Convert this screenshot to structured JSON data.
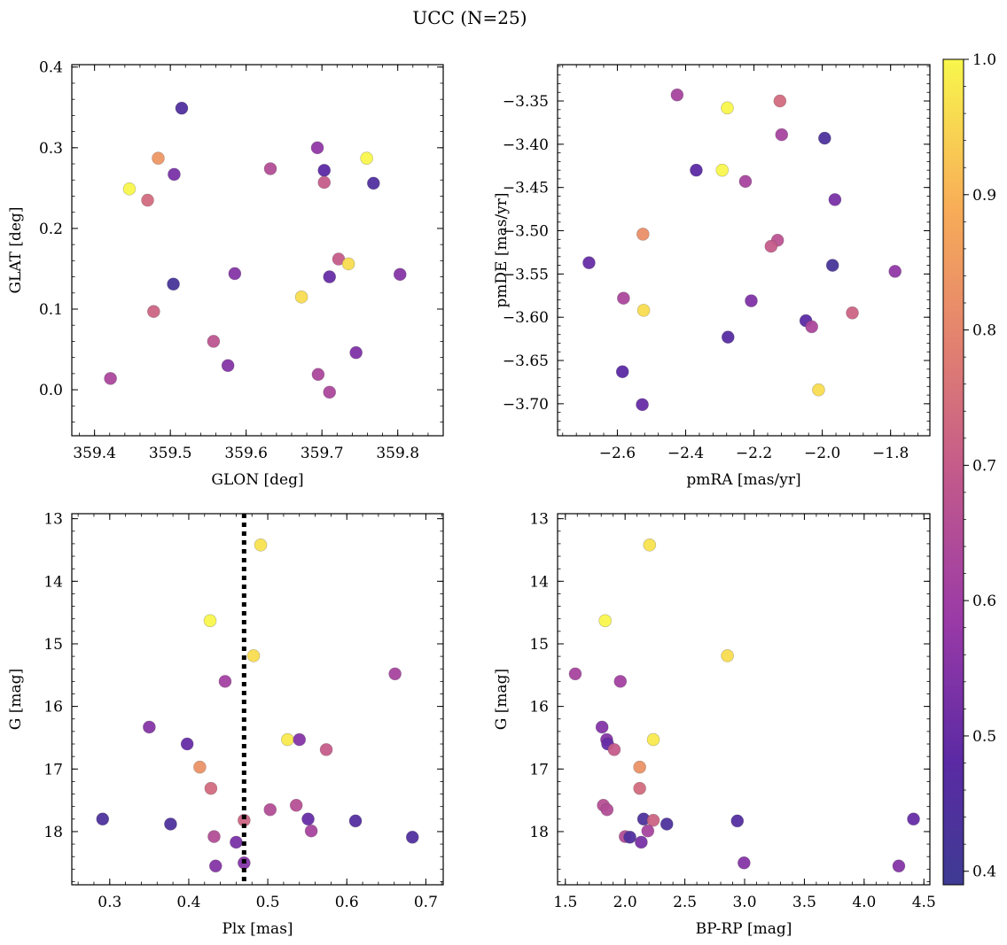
{
  "figure": {
    "title": "UCC (N=25)"
  },
  "colorbar": {
    "min": 0.39,
    "max": 1.0,
    "ticks": [
      0.4,
      0.5,
      0.6,
      0.7,
      0.8,
      0.9,
      1.0
    ],
    "tick_labels": [
      "0.4",
      "0.5",
      "0.6",
      "0.7",
      "0.8",
      "0.9",
      "1.0"
    ],
    "colormap": "plasma"
  },
  "chart_data": [
    {
      "id": "glon-glat",
      "type": "scatter",
      "xlabel": "GLON [deg]",
      "ylabel": "GLAT [deg]",
      "xlim": [
        359.37,
        359.86
      ],
      "ylim": [
        -0.057,
        0.403
      ],
      "xticks": [
        359.4,
        359.5,
        359.6,
        359.7,
        359.8
      ],
      "xtick_labels": [
        "359.4",
        "359.5",
        "359.6",
        "359.7",
        "359.8"
      ],
      "yticks": [
        0.0,
        0.1,
        0.2,
        0.3,
        0.4
      ],
      "ytick_labels": [
        "0.0",
        "0.1",
        "0.2",
        "0.3",
        "0.4"
      ],
      "y_inverted": false,
      "points": [
        {
          "x": 359.515,
          "y": 0.349,
          "c": 0.45
        },
        {
          "x": 359.694,
          "y": 0.3,
          "c": 0.57
        },
        {
          "x": 359.484,
          "y": 0.287,
          "c": 0.84
        },
        {
          "x": 359.759,
          "y": 0.287,
          "c": 1.0
        },
        {
          "x": 359.632,
          "y": 0.274,
          "c": 0.65
        },
        {
          "x": 359.703,
          "y": 0.272,
          "c": 0.48
        },
        {
          "x": 359.505,
          "y": 0.267,
          "c": 0.53
        },
        {
          "x": 359.703,
          "y": 0.257,
          "c": 0.7
        },
        {
          "x": 359.768,
          "y": 0.256,
          "c": 0.45
        },
        {
          "x": 359.446,
          "y": 0.249,
          "c": 1.0
        },
        {
          "x": 359.47,
          "y": 0.235,
          "c": 0.74
        },
        {
          "x": 359.722,
          "y": 0.162,
          "c": 0.7
        },
        {
          "x": 359.735,
          "y": 0.156,
          "c": 0.96
        },
        {
          "x": 359.803,
          "y": 0.143,
          "c": 0.55
        },
        {
          "x": 359.585,
          "y": 0.144,
          "c": 0.55
        },
        {
          "x": 359.71,
          "y": 0.14,
          "c": 0.5
        },
        {
          "x": 359.504,
          "y": 0.131,
          "c": 0.42
        },
        {
          "x": 359.673,
          "y": 0.115,
          "c": 0.96
        },
        {
          "x": 359.478,
          "y": 0.097,
          "c": 0.72
        },
        {
          "x": 359.557,
          "y": 0.06,
          "c": 0.68
        },
        {
          "x": 359.745,
          "y": 0.046,
          "c": 0.54
        },
        {
          "x": 359.576,
          "y": 0.03,
          "c": 0.55
        },
        {
          "x": 359.695,
          "y": 0.019,
          "c": 0.63
        },
        {
          "x": 359.421,
          "y": 0.014,
          "c": 0.63
        },
        {
          "x": 359.71,
          "y": -0.003,
          "c": 0.63
        }
      ]
    },
    {
      "id": "pmra-pmde",
      "type": "scatter",
      "xlabel": "pmRA [mas/yr]",
      "ylabel": "pmDE [mas/yr]",
      "xlim": [
        -2.775,
        -1.685
      ],
      "ylim": [
        -3.737,
        -3.308
      ],
      "xticks": [
        -2.6,
        -2.4,
        -2.2,
        -2.0,
        -1.8
      ],
      "xtick_labels": [
        "−2.6",
        "−2.4",
        "−2.2",
        "−2.0",
        "−1.8"
      ],
      "yticks": [
        -3.7,
        -3.65,
        -3.6,
        -3.55,
        -3.5,
        -3.45,
        -3.4,
        -3.35
      ],
      "ytick_labels": [
        "−3.70",
        "−3.65",
        "−3.60",
        "−3.55",
        "−3.50",
        "−3.45",
        "−3.40",
        "−3.35"
      ],
      "y_inverted": false,
      "points": [
        {
          "x": -2.425,
          "y": -3.343,
          "c": 0.62
        },
        {
          "x": -2.278,
          "y": -3.358,
          "c": 1.0
        },
        {
          "x": -2.124,
          "y": -3.35,
          "c": 0.74
        },
        {
          "x": -2.119,
          "y": -3.389,
          "c": 0.62
        },
        {
          "x": -1.993,
          "y": -3.393,
          "c": 0.44
        },
        {
          "x": -2.369,
          "y": -3.43,
          "c": 0.48
        },
        {
          "x": -2.293,
          "y": -3.43,
          "c": 1.0
        },
        {
          "x": -2.225,
          "y": -3.443,
          "c": 0.62
        },
        {
          "x": -1.963,
          "y": -3.464,
          "c": 0.53
        },
        {
          "x": -2.525,
          "y": -3.504,
          "c": 0.82
        },
        {
          "x": -2.131,
          "y": -3.511,
          "c": 0.67
        },
        {
          "x": -2.15,
          "y": -3.518,
          "c": 0.7
        },
        {
          "x": -2.683,
          "y": -3.537,
          "c": 0.5
        },
        {
          "x": -1.97,
          "y": -3.54,
          "c": 0.42
        },
        {
          "x": -1.787,
          "y": -3.547,
          "c": 0.57
        },
        {
          "x": -2.582,
          "y": -3.578,
          "c": 0.63
        },
        {
          "x": -2.208,
          "y": -3.581,
          "c": 0.54
        },
        {
          "x": -2.523,
          "y": -3.592,
          "c": 0.96
        },
        {
          "x": -1.912,
          "y": -3.595,
          "c": 0.72
        },
        {
          "x": -2.048,
          "y": -3.604,
          "c": 0.48
        },
        {
          "x": -2.031,
          "y": -3.611,
          "c": 0.63
        },
        {
          "x": -2.276,
          "y": -3.623,
          "c": 0.47
        },
        {
          "x": -2.585,
          "y": -3.663,
          "c": 0.48
        },
        {
          "x": -2.011,
          "y": -3.684,
          "c": 0.96
        },
        {
          "x": -2.527,
          "y": -3.701,
          "c": 0.5
        }
      ]
    },
    {
      "id": "plx-g",
      "type": "scatter",
      "xlabel": "Plx [mas]",
      "ylabel": "G [mag]",
      "xlim": [
        0.252,
        0.722
      ],
      "ylim": [
        18.85,
        12.92
      ],
      "xticks": [
        0.3,
        0.4,
        0.5,
        0.6,
        0.7
      ],
      "xtick_labels": [
        "0.3",
        "0.4",
        "0.5",
        "0.6",
        "0.7"
      ],
      "yticks": [
        13,
        14,
        15,
        16,
        17,
        18
      ],
      "ytick_labels": [
        "13",
        "14",
        "15",
        "16",
        "17",
        "18"
      ],
      "y_inverted": true,
      "vline": 0.47,
      "points": [
        {
          "x": 0.491,
          "y": 13.42,
          "c": 0.97
        },
        {
          "x": 0.427,
          "y": 14.63,
          "c": 1.0
        },
        {
          "x": 0.482,
          "y": 15.19,
          "c": 0.96
        },
        {
          "x": 0.661,
          "y": 15.48,
          "c": 0.62
        },
        {
          "x": 0.446,
          "y": 15.6,
          "c": 0.61
        },
        {
          "x": 0.35,
          "y": 16.33,
          "c": 0.55
        },
        {
          "x": 0.525,
          "y": 16.53,
          "c": 0.98
        },
        {
          "x": 0.54,
          "y": 16.53,
          "c": 0.55
        },
        {
          "x": 0.398,
          "y": 16.6,
          "c": 0.5
        },
        {
          "x": 0.574,
          "y": 16.69,
          "c": 0.7
        },
        {
          "x": 0.414,
          "y": 16.97,
          "c": 0.83
        },
        {
          "x": 0.428,
          "y": 17.31,
          "c": 0.74
        },
        {
          "x": 0.536,
          "y": 17.58,
          "c": 0.66
        },
        {
          "x": 0.503,
          "y": 17.65,
          "c": 0.65
        },
        {
          "x": 0.291,
          "y": 17.8,
          "c": 0.44
        },
        {
          "x": 0.551,
          "y": 17.8,
          "c": 0.5
        },
        {
          "x": 0.47,
          "y": 17.82,
          "c": 0.72
        },
        {
          "x": 0.611,
          "y": 17.83,
          "c": 0.46
        },
        {
          "x": 0.377,
          "y": 17.88,
          "c": 0.44
        },
        {
          "x": 0.555,
          "y": 17.99,
          "c": 0.62
        },
        {
          "x": 0.432,
          "y": 18.08,
          "c": 0.65
        },
        {
          "x": 0.683,
          "y": 18.09,
          "c": 0.45
        },
        {
          "x": 0.46,
          "y": 18.17,
          "c": 0.53
        },
        {
          "x": 0.47,
          "y": 18.5,
          "c": 0.55
        },
        {
          "x": 0.434,
          "y": 18.55,
          "c": 0.55
        }
      ]
    },
    {
      "id": "bprp-g",
      "type": "scatter",
      "xlabel": "BP-RP [mag]",
      "ylabel": "G [mag]",
      "xlim": [
        1.435,
        4.55
      ],
      "ylim": [
        18.85,
        12.92
      ],
      "xticks": [
        1.5,
        2.0,
        2.5,
        3.0,
        3.5,
        4.0,
        4.5
      ],
      "xtick_labels": [
        "1.5",
        "2.0",
        "2.5",
        "3.0",
        "3.5",
        "4.0",
        "4.5"
      ],
      "yticks": [
        13,
        14,
        15,
        16,
        17,
        18
      ],
      "ytick_labels": [
        "13",
        "14",
        "15",
        "16",
        "17",
        "18"
      ],
      "y_inverted": true,
      "points": [
        {
          "x": 2.205,
          "y": 13.42,
          "c": 0.97
        },
        {
          "x": 1.833,
          "y": 14.63,
          "c": 1.0
        },
        {
          "x": 2.856,
          "y": 15.19,
          "c": 0.96
        },
        {
          "x": 1.583,
          "y": 15.48,
          "c": 0.62
        },
        {
          "x": 1.96,
          "y": 15.6,
          "c": 0.61
        },
        {
          "x": 1.807,
          "y": 16.33,
          "c": 0.55
        },
        {
          "x": 2.236,
          "y": 16.53,
          "c": 0.98
        },
        {
          "x": 1.846,
          "y": 16.53,
          "c": 0.55
        },
        {
          "x": 1.854,
          "y": 16.6,
          "c": 0.5
        },
        {
          "x": 1.909,
          "y": 16.69,
          "c": 0.7
        },
        {
          "x": 2.122,
          "y": 16.97,
          "c": 0.83
        },
        {
          "x": 2.122,
          "y": 17.31,
          "c": 0.74
        },
        {
          "x": 1.818,
          "y": 17.58,
          "c": 0.66
        },
        {
          "x": 1.849,
          "y": 17.65,
          "c": 0.65
        },
        {
          "x": 2.155,
          "y": 17.8,
          "c": 0.44
        },
        {
          "x": 2.236,
          "y": 17.82,
          "c": 0.72
        },
        {
          "x": 4.413,
          "y": 17.8,
          "c": 0.5
        },
        {
          "x": 2.939,
          "y": 17.83,
          "c": 0.46
        },
        {
          "x": 2.349,
          "y": 17.88,
          "c": 0.44
        },
        {
          "x": 2.19,
          "y": 17.99,
          "c": 0.62
        },
        {
          "x": 2.001,
          "y": 18.08,
          "c": 0.65
        },
        {
          "x": 2.04,
          "y": 18.09,
          "c": 0.45
        },
        {
          "x": 2.135,
          "y": 18.17,
          "c": 0.53
        },
        {
          "x": 2.995,
          "y": 18.5,
          "c": 0.55
        },
        {
          "x": 4.29,
          "y": 18.55,
          "c": 0.55
        }
      ]
    }
  ]
}
